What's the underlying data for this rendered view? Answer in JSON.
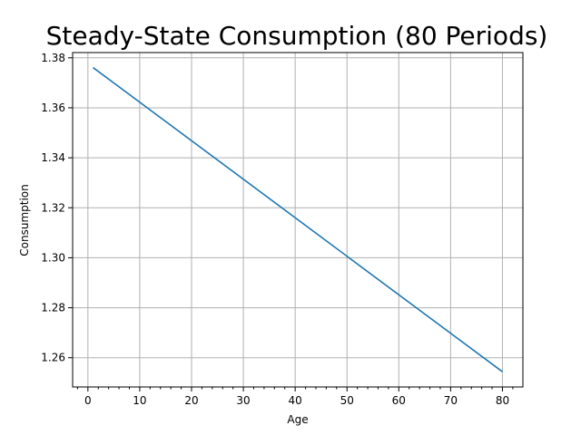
{
  "chart_data": {
    "type": "line",
    "title": "Steady-State Consumption (80 Periods)",
    "xlabel": "Age",
    "ylabel": "Consumption",
    "xlim": [
      -2.95,
      83.95
    ],
    "ylim": [
      1.2483,
      1.3821
    ],
    "x_ticks": [
      0,
      10,
      20,
      30,
      40,
      50,
      60,
      70,
      80
    ],
    "x_tick_labels": [
      "0",
      "10",
      "20",
      "30",
      "40",
      "50",
      "60",
      "70",
      "80"
    ],
    "y_ticks": [
      1.26,
      1.28,
      1.3,
      1.32,
      1.34,
      1.36,
      1.38
    ],
    "y_tick_labels": [
      "1.26",
      "1.28",
      "1.30",
      "1.32",
      "1.34",
      "1.36",
      "1.38"
    ],
    "x_minor_tick_step": 2,
    "grid": true,
    "series": [
      {
        "color": "#1f77b4",
        "x": [
          1,
          80
        ],
        "y": [
          1.3761,
          1.2544
        ]
      }
    ]
  }
}
